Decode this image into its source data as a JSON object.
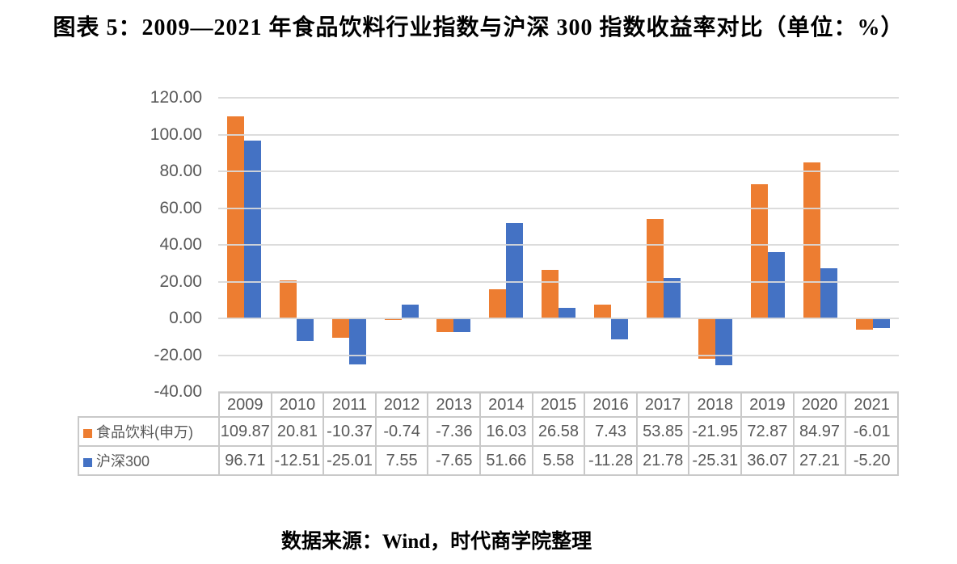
{
  "page": {
    "source": "数据来源：Wind，时代商学院整理"
  },
  "chart_data": {
    "type": "bar",
    "title": "图表 5：2009—2021 年食品饮料行业指数与沪深 300 指数收益率对比（单位：%）",
    "unit": "%",
    "categories": [
      "2009",
      "2010",
      "2011",
      "2012",
      "2013",
      "2014",
      "2015",
      "2016",
      "2017",
      "2018",
      "2019",
      "2020",
      "2021"
    ],
    "series": [
      {
        "name": "食品饮料(申万)",
        "color": "#ED7D31",
        "values": [
          109.87,
          20.81,
          -10.37,
          -0.74,
          -7.36,
          16.03,
          26.58,
          7.43,
          53.85,
          -21.95,
          72.87,
          84.97,
          -6.01
        ]
      },
      {
        "name": "沪深300",
        "color": "#4472C4",
        "values": [
          96.71,
          -12.51,
          -25.01,
          7.55,
          -7.65,
          51.66,
          5.58,
          -11.28,
          21.78,
          -25.31,
          36.07,
          27.21,
          -5.2
        ]
      }
    ],
    "ylim": [
      -40,
      120
    ],
    "ytick_step": 20,
    "ytick_format": "two-decimals",
    "grid": true,
    "gridline_color": "#D9D9D9",
    "axis_text_color": "#595959",
    "legend_position": "data-table-left",
    "data_table_shown": true
  }
}
